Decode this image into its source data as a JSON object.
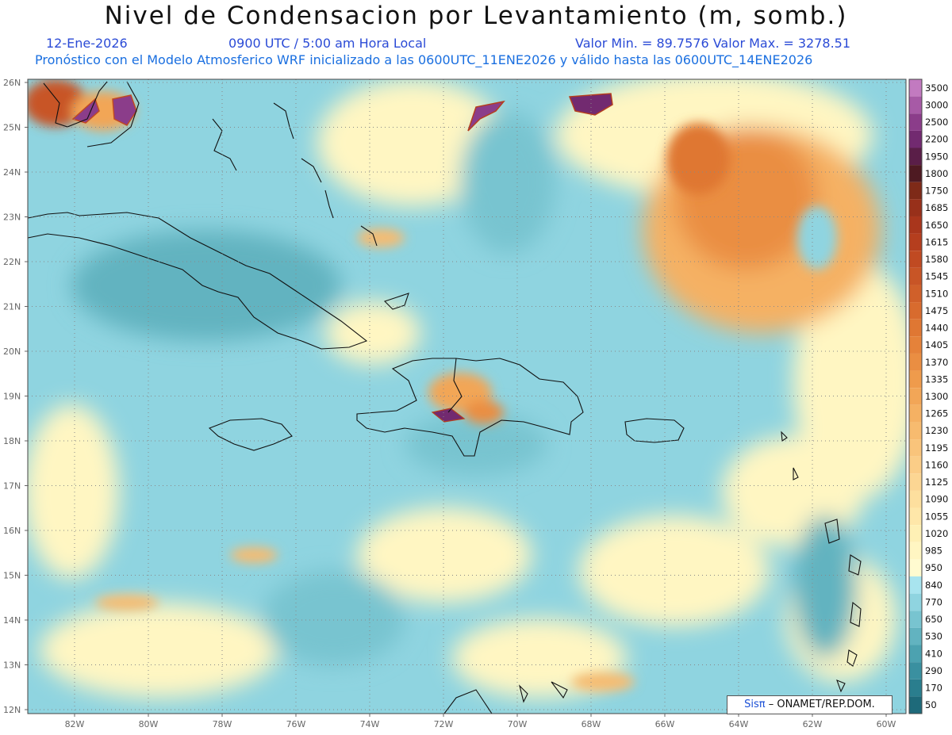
{
  "title": "Nivel de Condensacion por Levantamiento (m, somb.)",
  "date": "12-Ene-2026",
  "time": "0900 UTC / 5:00 am Hora Local",
  "minmax": "Valor Min. = 89.7576  Valor Max. = 3278.51",
  "model_info": "Pronóstico con el Modelo Atmosferico WRF inicializado a las 0600UTC_11ENE2026 y válido hasta las  0600UTC_14ENE2026",
  "credit_brand": "Sisπ",
  "credit_text": "– ONAMET/REP.DOM.",
  "lat_labels": [
    "26N",
    "25N",
    "24N",
    "23N",
    "22N",
    "21N",
    "20N",
    "19N",
    "18N",
    "17N",
    "16N",
    "15N",
    "14N",
    "13N",
    "12N"
  ],
  "lon_labels": [
    "82W",
    "80W",
    "78W",
    "76W",
    "74W",
    "72W",
    "70W",
    "68W",
    "66W",
    "64W",
    "62W",
    "60W"
  ],
  "colorbar": {
    "levels": [
      "3500",
      "3000",
      "2500",
      "2200",
      "1950",
      "1800",
      "1750",
      "1685",
      "1650",
      "1615",
      "1580",
      "1545",
      "1510",
      "1475",
      "1440",
      "1405",
      "1370",
      "1335",
      "1300",
      "1265",
      "1230",
      "1195",
      "1160",
      "1125",
      "1090",
      "1055",
      "1020",
      "985",
      "950",
      "840",
      "770",
      "650",
      "530",
      "410",
      "290",
      "170",
      "50"
    ],
    "colors": [
      "#c27ac0",
      "#a75aa6",
      "#8b3d8a",
      "#722a70",
      "#5a1e48",
      "#4e1a22",
      "#7e2a18",
      "#98301a",
      "#a9361c",
      "#b53e1e",
      "#c04a22",
      "#c85526",
      "#d0602a",
      "#d86b2e",
      "#df7733",
      "#e5823a",
      "#ea8e42",
      "#ef9b4c",
      "#f2a657",
      "#f5b163",
      "#f7bb6f",
      "#f9c47b",
      "#fbcd87",
      "#fcd693",
      "#fddf9e",
      "#fee7a9",
      "#fef0b5",
      "#fff6c2",
      "#fffbd0",
      "#a8e4ef",
      "#8fd4e0",
      "#78c4d0",
      "#62b3c0",
      "#4ca2b0",
      "#3a90a0",
      "#2a7e8e",
      "#1e6a7a"
    ]
  }
}
